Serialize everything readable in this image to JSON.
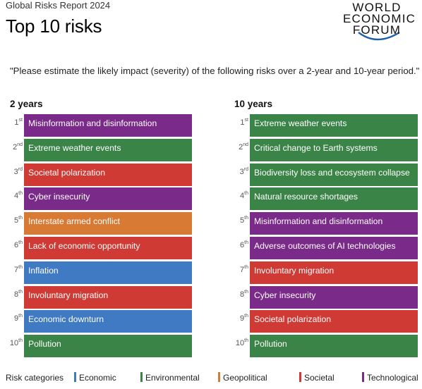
{
  "header": {
    "report": "Global Risks Report 2024",
    "title": "Top 10 risks",
    "logo_lines": [
      "WORLD",
      "ECONOMIC",
      "FORUM"
    ]
  },
  "question": "\"Please estimate the likely impact (severity) of the following risks over a 2-year and 10-year period.\"",
  "colors": {
    "Economic": "#3f7ac2",
    "Environmental": "#3b8448",
    "Geopolitical": "#d87a33",
    "Societal": "#cf3a34",
    "Technological": "#7a2a88"
  },
  "columns": [
    {
      "heading": "2 years",
      "items": [
        {
          "rank": "1",
          "suffix": "st",
          "label": "Misinformation and disinformation",
          "category": "Technological"
        },
        {
          "rank": "2",
          "suffix": "nd",
          "label": "Extreme weather events",
          "category": "Environmental"
        },
        {
          "rank": "3",
          "suffix": "rd",
          "label": "Societal polarization",
          "category": "Societal"
        },
        {
          "rank": "4",
          "suffix": "th",
          "label": "Cyber insecurity",
          "category": "Technological"
        },
        {
          "rank": "5",
          "suffix": "th",
          "label": "Interstate armed conflict",
          "category": "Geopolitical"
        },
        {
          "rank": "6",
          "suffix": "th",
          "label": "Lack of economic opportunity",
          "category": "Societal"
        },
        {
          "rank": "7",
          "suffix": "th",
          "label": "Inflation",
          "category": "Economic"
        },
        {
          "rank": "8",
          "suffix": "th",
          "label": "Involuntary migration",
          "category": "Societal"
        },
        {
          "rank": "9",
          "suffix": "th",
          "label": "Economic downturn",
          "category": "Economic"
        },
        {
          "rank": "10",
          "suffix": "th",
          "label": "Pollution",
          "category": "Environmental"
        }
      ]
    },
    {
      "heading": "10 years",
      "items": [
        {
          "rank": "1",
          "suffix": "st",
          "label": "Extreme weather events",
          "category": "Environmental"
        },
        {
          "rank": "2",
          "suffix": "nd",
          "label": "Critical change to Earth systems",
          "category": "Environmental"
        },
        {
          "rank": "3",
          "suffix": "rd",
          "label": "Biodiversity loss and ecosystem collapse",
          "category": "Environmental"
        },
        {
          "rank": "4",
          "suffix": "th",
          "label": "Natural resource shortages",
          "category": "Environmental"
        },
        {
          "rank": "5",
          "suffix": "th",
          "label": "Misinformation and disinformation",
          "category": "Technological"
        },
        {
          "rank": "6",
          "suffix": "th",
          "label": "Adverse outcomes of AI technologies",
          "category": "Technological"
        },
        {
          "rank": "7",
          "suffix": "th",
          "label": "Involuntary migration",
          "category": "Societal"
        },
        {
          "rank": "8",
          "suffix": "th",
          "label": "Cyber insecurity",
          "category": "Technological"
        },
        {
          "rank": "9",
          "suffix": "th",
          "label": "Societal polarization",
          "category": "Societal"
        },
        {
          "rank": "10",
          "suffix": "th",
          "label": "Pollution",
          "category": "Environmental"
        }
      ]
    }
  ],
  "legend": {
    "title": "Risk categories",
    "items": [
      "Economic",
      "Environmental",
      "Geopolitical",
      "Societal",
      "Technological"
    ]
  }
}
